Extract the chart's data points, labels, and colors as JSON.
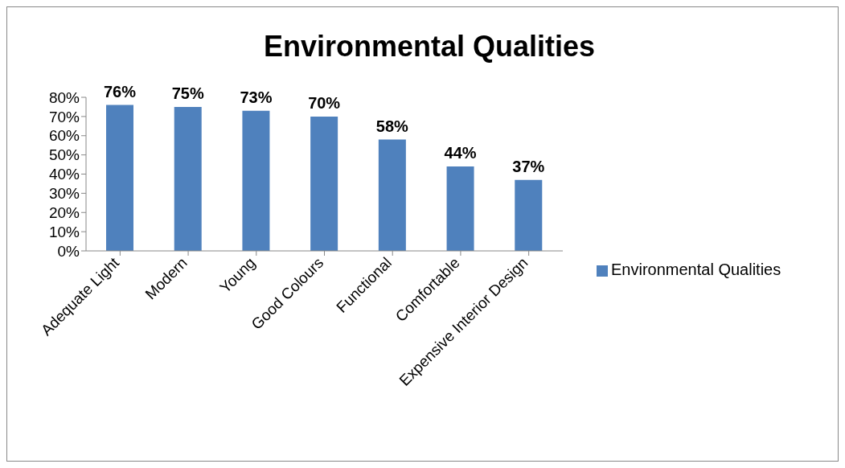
{
  "chart_data": {
    "type": "bar",
    "title": "Environmental Qualities",
    "categories": [
      "Adequate Light",
      "Modern",
      "Young",
      "Good Colours",
      "Functional",
      "Comfortable",
      "Expensive Interior Design"
    ],
    "series": [
      {
        "name": "Environmental Qualities",
        "color": "#4f81bd",
        "values": [
          76,
          75,
          73,
          70,
          58,
          44,
          37
        ],
        "value_labels": [
          "76%",
          "75%",
          "73%",
          "70%",
          "58%",
          "44%",
          "37%"
        ]
      }
    ],
    "ylim": [
      0,
      80
    ],
    "yticks": [
      {
        "value": 0,
        "label": "0%"
      },
      {
        "value": 10,
        "label": "10%"
      },
      {
        "value": 20,
        "label": "20%"
      },
      {
        "value": 30,
        "label": "30%"
      },
      {
        "value": 40,
        "label": "40%"
      },
      {
        "value": 50,
        "label": "50%"
      },
      {
        "value": 60,
        "label": "60%"
      },
      {
        "value": 70,
        "label": "70%"
      },
      {
        "value": 80,
        "label": "80%"
      }
    ],
    "grid": false,
    "legend": "right"
  }
}
